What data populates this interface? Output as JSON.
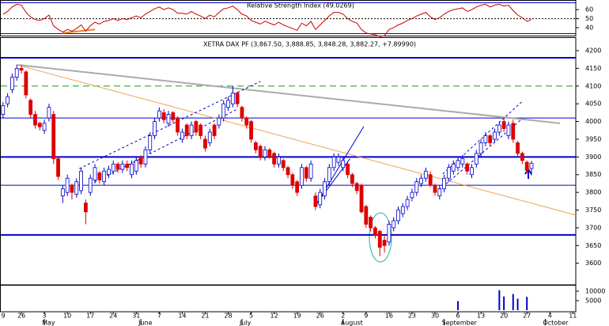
{
  "chart_data": [
    {
      "type": "candlestick",
      "title": "XETRA DAX PF (3,867.50, 3,888.85, 3,848.28, 3,882.27, +7.89990)",
      "x": [
        1,
        2,
        3,
        4,
        5,
        6,
        7,
        8,
        9,
        10,
        11,
        12,
        13,
        14,
        15,
        16,
        17,
        18,
        19,
        20,
        21,
        22,
        23,
        24,
        25,
        26,
        27,
        28,
        29,
        30,
        31,
        32,
        33,
        34,
        35,
        36,
        37,
        38,
        39,
        40,
        41,
        42,
        43,
        44,
        45,
        46,
        47,
        48,
        49,
        50,
        51,
        52,
        53,
        54,
        55,
        56,
        57,
        58,
        59,
        60,
        61,
        62,
        63,
        64,
        65,
        66,
        67,
        68,
        69,
        70,
        71,
        72,
        73,
        74,
        75,
        76,
        77,
        78,
        79,
        80,
        81,
        82,
        83,
        84,
        85,
        86,
        87,
        88,
        89,
        90,
        91,
        92,
        93,
        94,
        95,
        96,
        97,
        98,
        99,
        100,
        101,
        102,
        103,
        104,
        105,
        106,
        107,
        108,
        109,
        110,
        111,
        112,
        113,
        114,
        115,
        116
      ],
      "open": [
        4020,
        4050,
        4090,
        4125,
        4150,
        4140,
        4060,
        4020,
        3995,
        3975,
        4010,
        4020,
        3895,
        3790,
        3800,
        3820,
        3795,
        3805,
        3770,
        3800,
        3835,
        3855,
        3830,
        3850,
        3860,
        3880,
        3865,
        3880,
        3850,
        3860,
        3900,
        3880,
        3920,
        3960,
        4010,
        4025,
        3995,
        4025,
        4010,
        3950,
        3990,
        3960,
        4000,
        3990,
        3950,
        3940,
        3990,
        3990,
        4010,
        4040,
        4050,
        4080,
        4040,
        4010,
        4000,
        3940,
        3930,
        3900,
        3920,
        3910,
        3880,
        3890,
        3870,
        3850,
        3830,
        3820,
        3870,
        3840,
        3790,
        3765,
        3790,
        3830,
        3870,
        3885,
        3870,
        3880,
        3850,
        3825,
        3820,
        3760,
        3730,
        3700,
        3690,
        3665,
        3660,
        3700,
        3720,
        3740,
        3760,
        3785,
        3800,
        3825,
        3840,
        3850,
        3820,
        3790,
        3810,
        3840,
        3860,
        3870,
        3880,
        3880,
        3850,
        3880,
        3910,
        3940,
        3960,
        3950,
        3970,
        4000,
        3960,
        3995,
        3940,
        3910,
        3885,
        3867.5
      ],
      "high": [
        4055,
        4080,
        4135,
        4160,
        4160,
        4145,
        4065,
        4030,
        4000,
        4005,
        4050,
        4030,
        3900,
        3820,
        3850,
        3825,
        3840,
        3870,
        3780,
        3850,
        3880,
        3860,
        3870,
        3875,
        3890,
        3885,
        3890,
        3890,
        3890,
        3900,
        3905,
        3930,
        3970,
        4010,
        4040,
        4035,
        4030,
        4030,
        4015,
        3980,
        3995,
        4000,
        4005,
        3995,
        3960,
        3980,
        3995,
        4020,
        4060,
        4070,
        4100,
        4085,
        4045,
        4015,
        4005,
        3945,
        3935,
        3930,
        3925,
        3915,
        3910,
        3895,
        3875,
        3855,
        3835,
        3880,
        3875,
        3890,
        3800,
        3810,
        3840,
        3880,
        3910,
        3910,
        3900,
        3885,
        3855,
        3830,
        3825,
        3765,
        3735,
        3705,
        3695,
        3680,
        3720,
        3730,
        3760,
        3770,
        3790,
        3810,
        3840,
        3850,
        3870,
        3860,
        3825,
        3820,
        3850,
        3880,
        3890,
        3900,
        3905,
        3885,
        3880,
        3920,
        3950,
        3970,
        3965,
        3980,
        4000,
        4010,
        4000,
        4005,
        3945,
        3915,
        3890,
        3888.85
      ],
      "low": [
        4010,
        4040,
        4080,
        4115,
        4135,
        4065,
        4010,
        3980,
        3975,
        3965,
        4000,
        3880,
        3835,
        3770,
        3790,
        3780,
        3785,
        3795,
        3710,
        3790,
        3825,
        3825,
        3820,
        3840,
        3850,
        3855,
        3855,
        3860,
        3840,
        3850,
        3870,
        3870,
        3910,
        3950,
        4000,
        3995,
        3985,
        3995,
        3960,
        3940,
        3950,
        3950,
        3960,
        3950,
        3915,
        3930,
        3950,
        3980,
        4000,
        4030,
        4040,
        4040,
        4000,
        3980,
        3940,
        3910,
        3890,
        3890,
        3895,
        3870,
        3870,
        3860,
        3840,
        3810,
        3790,
        3810,
        3830,
        3830,
        3750,
        3755,
        3780,
        3820,
        3860,
        3875,
        3860,
        3840,
        3815,
        3795,
        3740,
        3700,
        3690,
        3670,
        3620,
        3630,
        3650,
        3690,
        3710,
        3730,
        3750,
        3775,
        3790,
        3815,
        3830,
        3815,
        3790,
        3780,
        3800,
        3830,
        3850,
        3860,
        3870,
        3850,
        3840,
        3870,
        3900,
        3930,
        3930,
        3940,
        3960,
        3970,
        3950,
        3940,
        3900,
        3880,
        3855,
        3848.28
      ],
      "close": [
        4045,
        4070,
        4125,
        4150,
        4145,
        4075,
        4020,
        3990,
        3985,
        3995,
        4040,
        3895,
        3845,
        3810,
        3840,
        3800,
        3830,
        3860,
        3745,
        3840,
        3870,
        3835,
        3860,
        3865,
        3880,
        3865,
        3880,
        3870,
        3880,
        3890,
        3880,
        3920,
        3960,
        4000,
        4030,
        4005,
        4020,
        4005,
        3970,
        3970,
        3960,
        3990,
        3970,
        3960,
        3925,
        3970,
        3960,
        4010,
        4050,
        4060,
        4080,
        4050,
        4010,
        3990,
        3950,
        3920,
        3900,
        3920,
        3900,
        3880,
        3900,
        3870,
        3850,
        3820,
        3800,
        3870,
        3840,
        3880,
        3760,
        3800,
        3830,
        3870,
        3900,
        3900,
        3890,
        3850,
        3825,
        3805,
        3745,
        3710,
        3700,
        3680,
        3645,
        3650,
        3710,
        3720,
        3750,
        3760,
        3780,
        3800,
        3830,
        3840,
        3860,
        3820,
        3800,
        3810,
        3840,
        3870,
        3880,
        3890,
        3895,
        3860,
        3870,
        3910,
        3940,
        3960,
        3940,
        3970,
        3990,
        3980,
        3990,
        3950,
        3910,
        3890,
        3862,
        3882.27
      ],
      "up_color": "#0000cc",
      "down_color": "#dd0000",
      "xlim": [
        0,
        125.5
      ],
      "ylim": [
        3539,
        4238
      ],
      "yticks": [
        3600,
        3650,
        3700,
        3750,
        3800,
        3850,
        3900,
        3950,
        4000,
        4050,
        4100,
        4150,
        4200
      ],
      "xticks": [
        {
          "value": 0,
          "label": "9"
        },
        {
          "value": 5,
          "label": "26"
        },
        {
          "value": 10,
          "label": "3"
        },
        {
          "value": 15,
          "label": "10"
        },
        {
          "value": 20,
          "label": "17"
        },
        {
          "value": 25,
          "label": "24"
        },
        {
          "value": 30,
          "label": "31"
        },
        {
          "value": 35,
          "label": "7"
        },
        {
          "value": 40,
          "label": "14"
        },
        {
          "value": 45,
          "label": "21"
        },
        {
          "value": 50,
          "label": "28"
        },
        {
          "value": 55,
          "label": "5"
        },
        {
          "value": 60,
          "label": "12"
        },
        {
          "value": 65,
          "label": "19"
        },
        {
          "value": 70,
          "label": "26"
        },
        {
          "value": 75,
          "label": "2"
        },
        {
          "value": 80,
          "label": "9"
        },
        {
          "value": 85,
          "label": "16"
        },
        {
          "value": 90,
          "label": "23"
        },
        {
          "value": 95,
          "label": "30"
        },
        {
          "value": 100,
          "label": "6"
        },
        {
          "value": 105,
          "label": "13"
        },
        {
          "value": 110,
          "label": "20"
        },
        {
          "value": 115,
          "label": "27"
        },
        {
          "value": 120,
          "label": "4"
        },
        {
          "value": 125,
          "label": "11"
        }
      ],
      "month_ticks": [
        {
          "value": 10,
          "label": "May"
        },
        {
          "value": 31,
          "label": "June"
        },
        {
          "value": 53,
          "label": "July"
        },
        {
          "value": 75,
          "label": "August"
        },
        {
          "value": 97,
          "label": "September"
        },
        {
          "value": 119,
          "label": "October"
        }
      ],
      "hlines": [
        {
          "value": 4180,
          "color": "#0000cc",
          "width": 2,
          "dash": false
        },
        {
          "value": 4100,
          "color": "#00aa00",
          "width": 1,
          "dash": true
        },
        {
          "value": 4010,
          "color": "#0000cc",
          "width": 1,
          "dash": false
        },
        {
          "value": 3900,
          "color": "#0000cc",
          "width": 2,
          "dash": false
        },
        {
          "value": 3820,
          "color": "#0000cc",
          "width": 1,
          "dash": false
        },
        {
          "value": 3680,
          "color": "#0000cc",
          "width": 2,
          "dash": false
        }
      ],
      "trendlines": [
        {
          "x": [
            4,
            122.2
          ],
          "y": [
            4160,
            3995
          ],
          "color": "#aaaaaa",
          "width": 2,
          "dash": false
        },
        {
          "x": [
            4,
            125.6
          ],
          "y": [
            4160,
            3736
          ],
          "color": "#f0a050",
          "width": 1,
          "dash": false
        },
        {
          "x": [
            20,
            52
          ],
          "y": [
            3823,
            4035
          ],
          "color": "#0000cc",
          "width": 1,
          "dash": true
        },
        {
          "x": [
            17.6,
            57
          ],
          "y": [
            3867,
            4113
          ],
          "color": "#0000cc",
          "width": 1,
          "dash": true
        },
        {
          "x": [
            69.2,
            79.5
          ],
          "y": [
            3767,
            3986
          ],
          "color": "#0000cc",
          "width": 1,
          "dash": false
        },
        {
          "x": [
            69.2,
            76.5
          ],
          "y": [
            3767,
            3895
          ],
          "color": "#0000cc",
          "width": 1,
          "dash": false
        },
        {
          "x": [
            95.9,
            114
          ],
          "y": [
            3807,
            4008
          ],
          "color": "#0000cc",
          "width": 1,
          "dash": true
        },
        {
          "x": [
            96.7,
            114
          ],
          "y": [
            3852,
            4057
          ],
          "color": "#0000cc",
          "width": 1,
          "dash": true
        }
      ]
    },
    {
      "type": "line",
      "title": "Relative Strength Index (49.0269)",
      "x": [
        1,
        2,
        3,
        4,
        5,
        6,
        7,
        8,
        9,
        10,
        11,
        12,
        13,
        14,
        15,
        16,
        17,
        18,
        19,
        20,
        21,
        22,
        23,
        24,
        25,
        26,
        27,
        28,
        29,
        30,
        31,
        32,
        33,
        34,
        35,
        36,
        37,
        38,
        39,
        40,
        41,
        42,
        43,
        44,
        45,
        46,
        47,
        48,
        49,
        50,
        51,
        52,
        53,
        54,
        55,
        56,
        57,
        58,
        59,
        60,
        61,
        62,
        63,
        64,
        65,
        66,
        67,
        68,
        69,
        70,
        71,
        72,
        73,
        74,
        75,
        76,
        77,
        78,
        79,
        80,
        81,
        82,
        83,
        84,
        85,
        86,
        87,
        88,
        89,
        90,
        91,
        92,
        93,
        94,
        95,
        96,
        97,
        98,
        99,
        100,
        101,
        102,
        103,
        104,
        105,
        106,
        107,
        108,
        109,
        110,
        111,
        112,
        113,
        114,
        115,
        116
      ],
      "values": [
        55,
        58,
        63,
        66,
        65,
        57,
        52,
        49,
        48,
        50,
        54,
        42,
        38,
        35,
        38,
        36,
        39,
        43,
        36,
        42,
        46,
        44,
        47,
        48,
        50,
        48,
        50,
        49,
        51,
        53,
        51,
        55,
        58,
        61,
        63,
        60,
        62,
        60,
        56,
        56,
        55,
        58,
        55,
        53,
        50,
        54,
        52,
        57,
        61,
        62,
        64,
        60,
        55,
        53,
        48,
        46,
        44,
        47,
        45,
        43,
        46,
        43,
        41,
        39,
        37,
        45,
        42,
        47,
        38,
        43,
        48,
        53,
        57,
        57,
        55,
        50,
        47,
        45,
        38,
        34,
        33,
        32,
        30,
        31,
        38,
        40,
        43,
        45,
        48,
        50,
        53,
        55,
        57,
        52,
        49,
        51,
        55,
        58,
        60,
        61,
        62,
        58,
        60,
        63,
        65,
        66,
        63,
        65,
        66,
        64,
        65,
        59,
        54,
        51,
        47,
        49.0269
      ],
      "color": "#cc0000",
      "xlim": [
        0,
        125.5
      ],
      "ylim": [
        32,
        69
      ],
      "yticks": [
        40,
        50,
        60
      ],
      "reference": 50,
      "trendlines": [
        {
          "x": [
            14,
            21
          ],
          "y": [
            34,
            38
          ],
          "color": "#f08020",
          "width": 2,
          "dash": false
        }
      ]
    },
    {
      "type": "bar",
      "x": [
        100,
        109,
        110,
        112,
        113,
        115
      ],
      "values": [
        4800,
        10500,
        7200,
        8500,
        6000,
        7000
      ],
      "color": "#0000cc",
      "xlim": [
        0,
        125.5
      ],
      "ylim": [
        0,
        12900
      ],
      "yticks": [
        5000,
        10000
      ]
    }
  ]
}
